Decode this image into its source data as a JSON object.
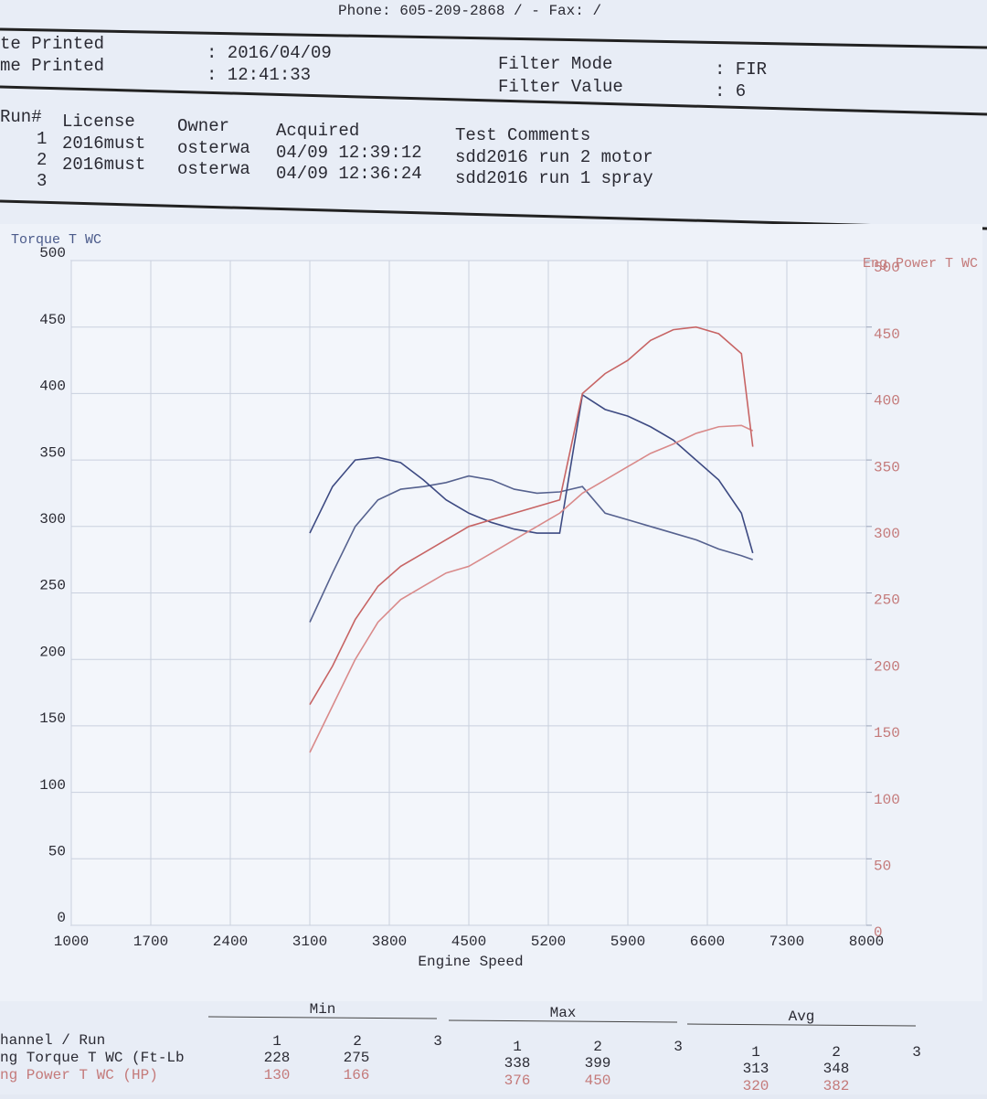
{
  "header": {
    "phone": "Phone: 605-209-2868 /  - Fax:  /",
    "date_label": "te Printed",
    "date_value": ": 2016/04/09",
    "time_label": "me Printed",
    "time_value": ": 12:41:33",
    "filter_mode_label": "Filter Mode",
    "filter_mode_value": ": FIR",
    "filter_value_label": "Filter Value",
    "filter_value_value": ": 6"
  },
  "runs": {
    "columns": [
      "Run#",
      "License",
      "Owner",
      "Acquired",
      "Test Comments"
    ],
    "rows": [
      [
        "1",
        "2016must",
        "osterwa",
        "04/09 12:39:12",
        "sdd2016 run 2 motor"
      ],
      [
        "2",
        "2016must",
        "osterwa",
        "04/09 12:36:24",
        "sdd2016 run 1 spray"
      ],
      [
        "3"
      ]
    ]
  },
  "chart_data": {
    "type": "line",
    "y_label": "Torque T WC",
    "y2_label": "Eng Power T WC",
    "x_label": "Engine Speed",
    "x": [
      3100,
      3300,
      3500,
      3700,
      3900,
      4100,
      4300,
      4500,
      4700,
      4900,
      5100,
      5300,
      5500,
      5700,
      5900,
      6100,
      6300,
      6500,
      6700,
      6900,
      7000
    ],
    "series": [
      {
        "color": "#56628f",
        "values": [
          228,
          265,
          300,
          320,
          328,
          330,
          333,
          338,
          335,
          328,
          325,
          326,
          330,
          310,
          305,
          300,
          295,
          290,
          283,
          278,
          275
        ]
      },
      {
        "color": "#3d4a82",
        "values": [
          295,
          330,
          350,
          352,
          348,
          335,
          320,
          310,
          303,
          298,
          295,
          295,
          399,
          388,
          383,
          375,
          365,
          350,
          335,
          310,
          280
        ]
      },
      {
        "color": "#d98a8a",
        "axis": "y2",
        "values": [
          130,
          165,
          200,
          228,
          245,
          255,
          265,
          270,
          280,
          290,
          300,
          310,
          325,
          335,
          345,
          355,
          362,
          370,
          375,
          376,
          372
        ]
      },
      {
        "color": "#c76464",
        "axis": "y2",
        "values": [
          166,
          195,
          230,
          255,
          270,
          280,
          290,
          300,
          305,
          310,
          315,
          320,
          400,
          415,
          425,
          440,
          448,
          450,
          445,
          430,
          360
        ]
      }
    ],
    "xlim": [
      1000,
      8000
    ],
    "xticks": [
      1000,
      1700,
      2400,
      3100,
      3800,
      4500,
      5200,
      5900,
      6600,
      7300,
      8000
    ],
    "ylim": [
      0,
      500
    ],
    "yticks": [
      0,
      50,
      100,
      150,
      200,
      250,
      300,
      350,
      400,
      450,
      500
    ],
    "y2lim": [
      0,
      500
    ],
    "y2ticks": [
      0,
      50,
      100,
      150,
      200,
      250,
      300,
      350,
      400,
      450,
      500
    ],
    "grid": true
  },
  "summary": {
    "groups": [
      "Min",
      "Max",
      "Avg"
    ],
    "channel_label": "hannel / Run",
    "run_numbers": [
      "1",
      "2",
      "3"
    ],
    "rows": [
      {
        "label": "ng Torque T WC (Ft-Lb",
        "min": [
          228,
          275
        ],
        "max": [
          338,
          399
        ],
        "avg": [
          313,
          348
        ]
      },
      {
        "label": "ng Power T WC (HP)",
        "min": [
          130,
          166
        ],
        "max": [
          376,
          450
        ],
        "avg": [
          320,
          382
        ]
      }
    ]
  }
}
